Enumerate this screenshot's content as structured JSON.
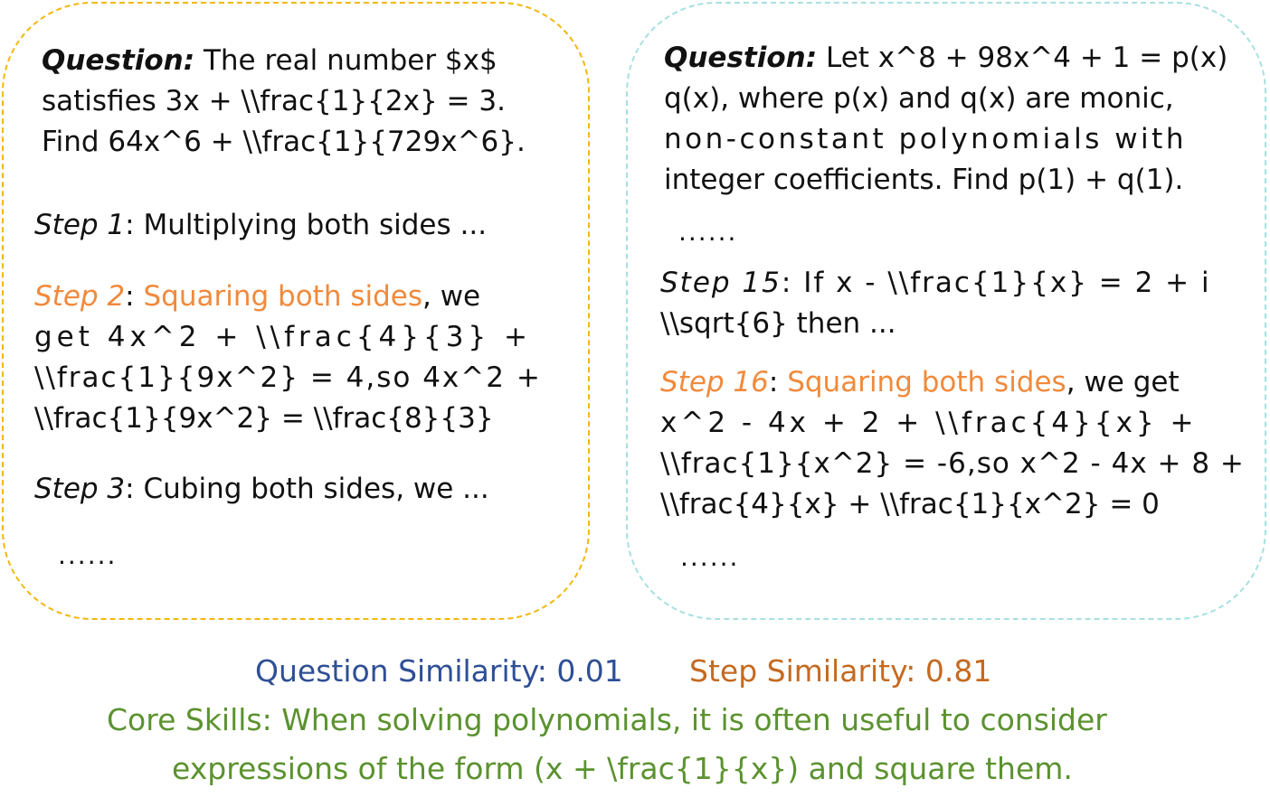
{
  "left": {
    "question_label": "Question:",
    "question_lines": [
      "The real number $x$",
      "satisfies 3x + \\\\frac{1}{2x} = 3.",
      "Find 64x^6 + \\\\frac{1}{729x^6}."
    ],
    "step1": {
      "label": "Step 1",
      "text": ": Multiplying both sides ..."
    },
    "step2": {
      "label": "Step 2",
      "sep": ": ",
      "highlight": "Squaring both sides",
      "rest": ", we",
      "lines": [
        "get 4x^2 + \\\\frac{4}{3} +",
        "\\\\frac{1}{9x^2} = 4,so 4x^2 +",
        "\\\\frac{1}{9x^2} = \\\\frac{8}{3}"
      ]
    },
    "step3": {
      "label": "Step 3",
      "text": ": Cubing both sides, we ..."
    },
    "ellipsis": "......"
  },
  "right": {
    "question_label": "Question:",
    "question_first": "Let x^8 + 98x^4 + 1 = p(x)",
    "question_lines": [
      "q(x), where p(x) and q(x) are monic,",
      "non-constant polynomials with",
      "integer coefficients. Find p(1) + q(1)."
    ],
    "ellipsis_top": "......",
    "step15": {
      "label": "Step 15",
      "first": ": If x - \\\\frac{1}{x} = 2 + i",
      "second": "\\\\sqrt{6} then ..."
    },
    "step16": {
      "label": "Step 16",
      "sep": ": ",
      "highlight": "Squaring both sides",
      "rest": ", we get",
      "lines": [
        "x^2 - 4x + 2 + \\\\frac{4}{x} +",
        "\\\\frac{1}{x^2} = -6,so x^2 - 4x + 8 +",
        "\\\\frac{4}{x} + \\\\frac{1}{x^2} = 0"
      ]
    },
    "ellipsis_bottom": "......"
  },
  "summary": {
    "question_similarity": "Question Similarity: 0.01",
    "step_similarity": "Step Similarity: 0.81",
    "core_skills_line1": "Core Skills: When solving polynomials, it is often useful to consider",
    "core_skills_line2": "expressions of the form (x + \\frac{1}{x}) and square them."
  },
  "colors": {
    "left_border": "#f2b80f",
    "right_border": "#a8e0e0",
    "highlight": "#f08a3c",
    "question_similarity": "#2e4f96",
    "step_similarity": "#c46a21",
    "core_skills": "#5b922f"
  }
}
